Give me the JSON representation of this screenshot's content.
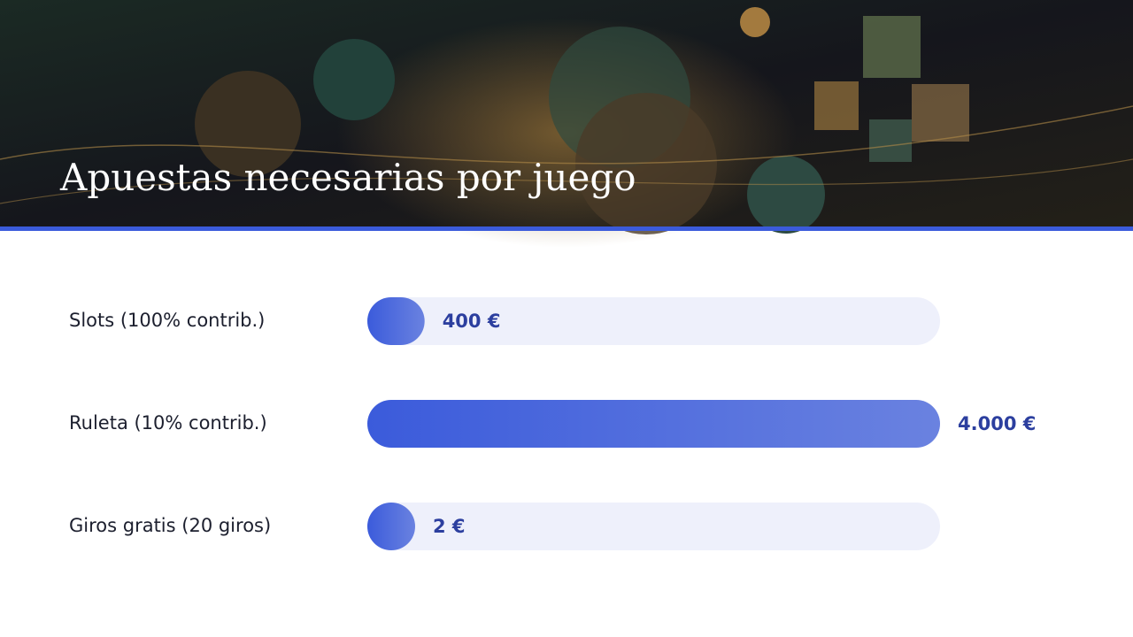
{
  "chart_data": {
    "type": "bar",
    "orientation": "horizontal",
    "title": "Apuestas necesarias por juego",
    "categories": [
      "Slots (100% contrib.)",
      "Ruleta (10% contrib.)",
      "Giros gratis (20 giros)"
    ],
    "values": [
      400,
      4000,
      2
    ],
    "value_labels": [
      "400 €",
      "4.000 €",
      "2 €"
    ],
    "color": "#3b5bdb",
    "xlim": [
      0,
      4000
    ]
  }
}
